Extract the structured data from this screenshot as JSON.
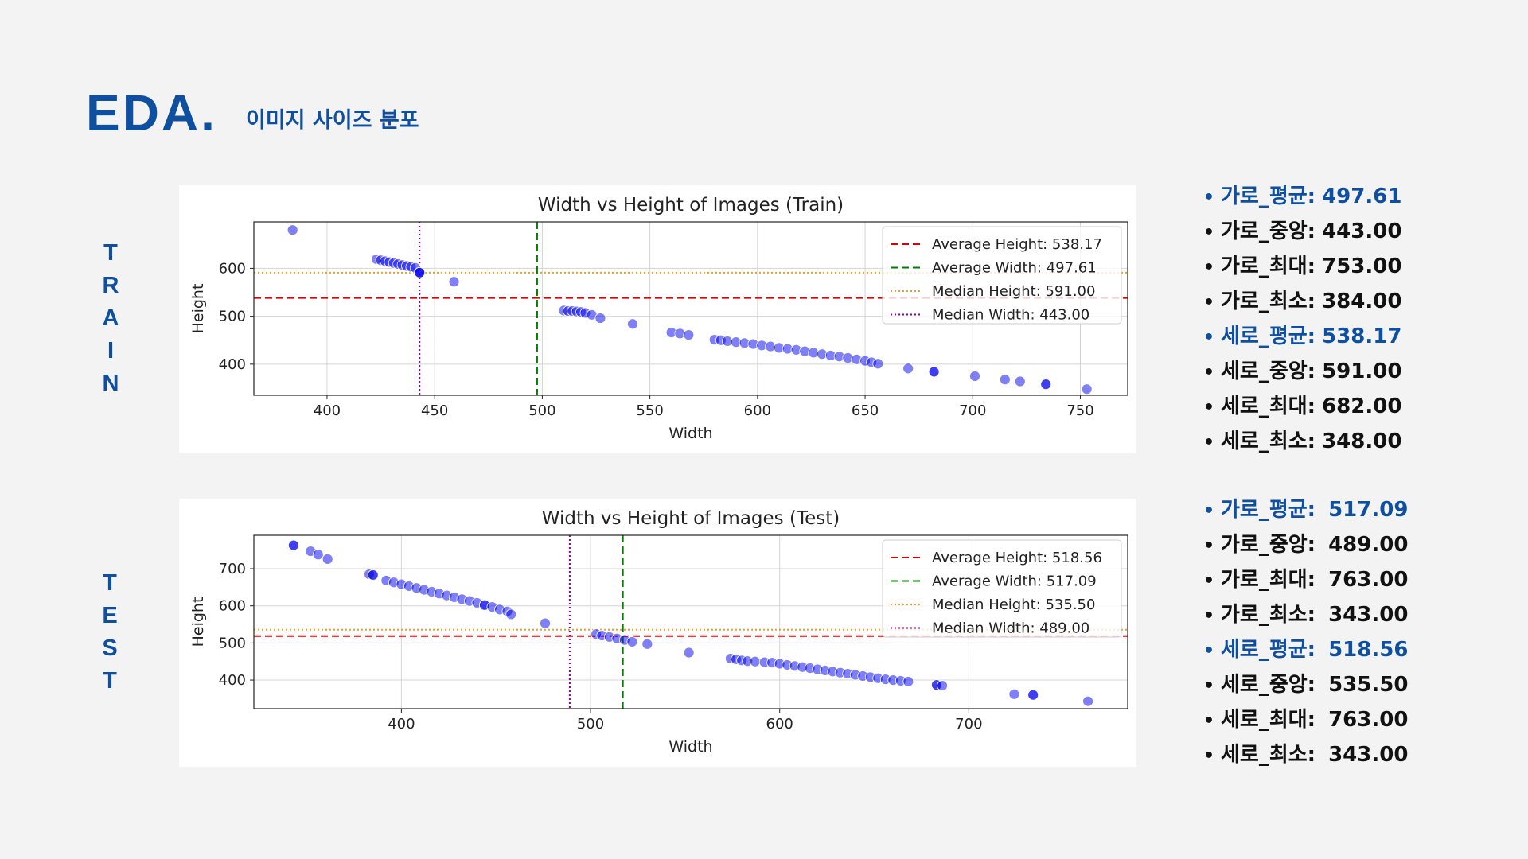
{
  "header": {
    "title": "EDA.",
    "subtitle": "이미지 사이즈 분포"
  },
  "side_labels": {
    "train": [
      "T",
      "R",
      "A",
      "I",
      "N"
    ],
    "test": [
      "T",
      "E",
      "S",
      "T"
    ]
  },
  "colors": {
    "accent": "#0e4fa0",
    "avg_height": "#e00000",
    "avg_width": "#008000",
    "median_height": "#f0a020",
    "median_width": "#8800aa",
    "points": "#0000ee"
  },
  "stats": {
    "train": [
      {
        "label": "가로_평균:",
        "value": "497.61",
        "highlight": true
      },
      {
        "label": "가로_중앙:",
        "value": "443.00",
        "highlight": false
      },
      {
        "label": "가로_최대:",
        "value": "753.00",
        "highlight": false
      },
      {
        "label": "가로_최소:",
        "value": "384.00",
        "highlight": false
      },
      {
        "label": "세로_평균:",
        "value": "538.17",
        "highlight": true
      },
      {
        "label": "세로_중앙:",
        "value": "591.00",
        "highlight": false
      },
      {
        "label": "세로_최대:",
        "value": "682.00",
        "highlight": false
      },
      {
        "label": "세로_최소:",
        "value": "348.00",
        "highlight": false
      }
    ],
    "test": [
      {
        "label": "가로_평균:",
        "value": "517.09",
        "highlight": true
      },
      {
        "label": "가로_중앙:",
        "value": "489.00",
        "highlight": false
      },
      {
        "label": "가로_최대:",
        "value": "763.00",
        "highlight": false
      },
      {
        "label": "가로_최소:",
        "value": "343.00",
        "highlight": false
      },
      {
        "label": "세로_평균:",
        "value": "518.56",
        "highlight": true
      },
      {
        "label": "세로_중앙:",
        "value": "535.50",
        "highlight": false
      },
      {
        "label": "세로_최대:",
        "value": "763.00",
        "highlight": false
      },
      {
        "label": "세로_최소:",
        "value": "343.00",
        "highlight": false
      }
    ]
  },
  "chart_data": [
    {
      "id": "train",
      "type": "scatter",
      "title": "Width vs Height of Images (Train)",
      "xlabel": "Width",
      "ylabel": "Height",
      "xlim": [
        366,
        772
      ],
      "ylim": [
        335,
        697
      ],
      "xticks": [
        400,
        450,
        500,
        550,
        600,
        650,
        700,
        750
      ],
      "yticks": [
        400,
        500,
        600
      ],
      "grid": true,
      "legend_position": "top-right",
      "reference_lines": [
        {
          "name": "Average Height: 538.17",
          "axis": "y",
          "value": 538.17,
          "style": "dashed",
          "color": "#e00000"
        },
        {
          "name": "Average Width: 497.61",
          "axis": "x",
          "value": 497.61,
          "style": "dashed",
          "color": "#008000"
        },
        {
          "name": "Median Height: 591.00",
          "axis": "y",
          "value": 591.0,
          "style": "dotted",
          "color": "#f0a020"
        },
        {
          "name": "Median Width: 443.00",
          "axis": "x",
          "value": 443.0,
          "style": "dotted",
          "color": "#8800aa"
        }
      ],
      "points": [
        [
          384,
          680
        ],
        [
          459,
          572
        ],
        [
          423,
          619
        ],
        [
          425,
          617
        ],
        [
          427,
          615
        ],
        [
          429,
          613
        ],
        [
          431,
          611
        ],
        [
          433,
          609
        ],
        [
          435,
          607
        ],
        [
          437,
          605
        ],
        [
          439,
          603
        ],
        [
          441,
          601
        ],
        [
          443,
          591
        ],
        [
          443,
          591
        ],
        [
          443,
          591
        ],
        [
          510,
          512
        ],
        [
          512,
          511
        ],
        [
          514,
          511
        ],
        [
          516,
          510
        ],
        [
          518,
          509
        ],
        [
          520,
          507
        ],
        [
          523,
          503
        ],
        [
          527,
          496
        ],
        [
          542,
          484
        ],
        [
          560,
          466
        ],
        [
          564,
          464
        ],
        [
          568,
          461
        ],
        [
          580,
          451
        ],
        [
          583,
          450
        ],
        [
          586,
          448
        ],
        [
          590,
          446
        ],
        [
          594,
          444
        ],
        [
          598,
          442
        ],
        [
          602,
          439
        ],
        [
          606,
          437
        ],
        [
          610,
          434
        ],
        [
          614,
          432
        ],
        [
          618,
          430
        ],
        [
          622,
          427
        ],
        [
          626,
          424
        ],
        [
          630,
          421
        ],
        [
          634,
          418
        ],
        [
          638,
          416
        ],
        [
          642,
          413
        ],
        [
          646,
          410
        ],
        [
          650,
          407
        ],
        [
          653,
          404
        ],
        [
          656,
          401
        ],
        [
          670,
          391
        ],
        [
          682,
          384
        ],
        [
          682,
          384
        ],
        [
          701,
          375
        ],
        [
          715,
          368
        ],
        [
          722,
          364
        ],
        [
          734,
          358
        ],
        [
          734,
          358
        ],
        [
          753,
          348
        ]
      ]
    },
    {
      "id": "test",
      "type": "scatter",
      "title": "Width vs Height of Images (Test)",
      "xlabel": "Width",
      "ylabel": "Height",
      "xlim": [
        322,
        784
      ],
      "ylim": [
        323,
        790
      ],
      "xticks": [
        400,
        500,
        600,
        700
      ],
      "yticks": [
        400,
        500,
        600,
        700
      ],
      "grid": true,
      "legend_position": "top-right",
      "reference_lines": [
        {
          "name": "Average Height: 518.56",
          "axis": "y",
          "value": 518.56,
          "style": "dashed",
          "color": "#e00000"
        },
        {
          "name": "Average Width: 517.09",
          "axis": "x",
          "value": 517.09,
          "style": "dashed",
          "color": "#008000"
        },
        {
          "name": "Median Height: 535.50",
          "axis": "y",
          "value": 535.5,
          "style": "dotted",
          "color": "#f0a020"
        },
        {
          "name": "Median Width: 489.00",
          "axis": "x",
          "value": 489.0,
          "style": "dotted",
          "color": "#8800aa"
        }
      ],
      "points": [
        [
          343,
          763
        ],
        [
          343,
          763
        ],
        [
          352,
          747
        ],
        [
          356,
          738
        ],
        [
          361,
          726
        ],
        [
          383,
          685
        ],
        [
          385,
          683
        ],
        [
          385,
          683
        ],
        [
          392,
          668
        ],
        [
          396,
          663
        ],
        [
          400,
          658
        ],
        [
          404,
          653
        ],
        [
          408,
          648
        ],
        [
          412,
          643
        ],
        [
          416,
          638
        ],
        [
          420,
          633
        ],
        [
          424,
          628
        ],
        [
          428,
          623
        ],
        [
          432,
          618
        ],
        [
          436,
          613
        ],
        [
          440,
          608
        ],
        [
          444,
          602
        ],
        [
          444,
          602
        ],
        [
          448,
          597
        ],
        [
          452,
          590
        ],
        [
          456,
          585
        ],
        [
          458,
          577
        ],
        [
          476,
          553
        ],
        [
          503,
          524
        ],
        [
          506,
          520
        ],
        [
          510,
          516
        ],
        [
          514,
          512
        ],
        [
          518,
          508
        ],
        [
          522,
          503
        ],
        [
          530,
          497
        ],
        [
          552,
          474
        ],
        [
          574,
          458
        ],
        [
          577,
          456
        ],
        [
          580,
          453
        ],
        [
          583,
          451
        ],
        [
          587,
          450
        ],
        [
          592,
          448
        ],
        [
          596,
          447
        ],
        [
          600,
          444
        ],
        [
          604,
          441
        ],
        [
          608,
          438
        ],
        [
          612,
          435
        ],
        [
          616,
          432
        ],
        [
          620,
          429
        ],
        [
          624,
          426
        ],
        [
          628,
          423
        ],
        [
          632,
          420
        ],
        [
          636,
          417
        ],
        [
          640,
          414
        ],
        [
          644,
          411
        ],
        [
          648,
          408
        ],
        [
          652,
          405
        ],
        [
          656,
          402
        ],
        [
          660,
          400
        ],
        [
          664,
          398
        ],
        [
          668,
          396
        ],
        [
          683,
          387
        ],
        [
          683,
          387
        ],
        [
          686,
          385
        ],
        [
          724,
          362
        ],
        [
          734,
          360
        ],
        [
          734,
          360
        ],
        [
          763,
          343
        ]
      ]
    }
  ]
}
